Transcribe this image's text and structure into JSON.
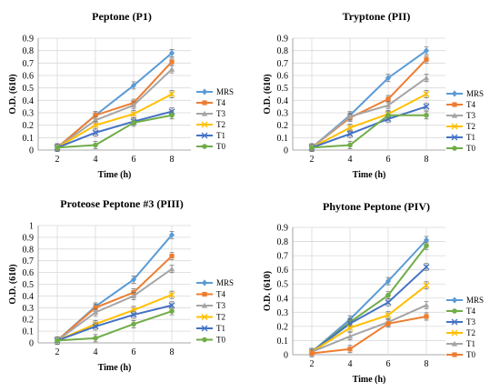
{
  "chart_data": [
    {
      "type": "line",
      "title": "Peptone (P1)",
      "xlabel": "Time (h)",
      "ylabel": "O.D. (610)",
      "x": [
        2,
        4,
        6,
        8
      ],
      "ylim": [
        0,
        0.9
      ],
      "yticks": [
        "0",
        "0.1",
        "0.2",
        "0.3",
        "0.4",
        "0.5",
        "0.6",
        "0.7",
        "0.8",
        "0.9"
      ],
      "xticks": [
        "2",
        "4",
        "6",
        "8"
      ],
      "grid": true,
      "legend": "right",
      "series": [
        {
          "name": "MRS",
          "color": "#5b9bd5",
          "marker": "diamond",
          "values": [
            0.02,
            0.28,
            0.52,
            0.78
          ]
        },
        {
          "name": "T4",
          "color": "#ed7d31",
          "marker": "square",
          "values": [
            0.02,
            0.28,
            0.38,
            0.71
          ]
        },
        {
          "name": "T3",
          "color": "#a5a5a5",
          "marker": "triangle",
          "values": [
            0.02,
            0.24,
            0.36,
            0.65
          ]
        },
        {
          "name": "T2",
          "color": "#ffc000",
          "marker": "x",
          "values": [
            0.02,
            0.2,
            0.29,
            0.45
          ]
        },
        {
          "name": "T1",
          "color": "#4472c4",
          "marker": "x",
          "values": [
            0.02,
            0.14,
            0.23,
            0.31
          ]
        },
        {
          "name": "T0",
          "color": "#70ad47",
          "marker": "circle",
          "values": [
            0.02,
            0.04,
            0.22,
            0.28
          ]
        }
      ]
    },
    {
      "type": "line",
      "title": "Tryptone (PII)",
      "xlabel": "Time (h)",
      "ylabel": "O.D. (610)",
      "x": [
        2,
        4,
        6,
        8
      ],
      "ylim": [
        0,
        0.9
      ],
      "yticks": [
        "0",
        "0.1",
        "0.2",
        "0.3",
        "0.4",
        "0.5",
        "0.6",
        "0.7",
        "0.8",
        "0.9"
      ],
      "xticks": [
        "2",
        "4",
        "6",
        "8"
      ],
      "grid": true,
      "legend": "right",
      "series": [
        {
          "name": "MRS",
          "color": "#5b9bd5",
          "marker": "diamond",
          "values": [
            0.02,
            0.28,
            0.58,
            0.8
          ]
        },
        {
          "name": "T4",
          "color": "#ed7d31",
          "marker": "square",
          "values": [
            0.02,
            0.26,
            0.41,
            0.73
          ]
        },
        {
          "name": "T3",
          "color": "#a5a5a5",
          "marker": "triangle",
          "values": [
            0.02,
            0.27,
            0.36,
            0.58
          ]
        },
        {
          "name": "T2",
          "color": "#ffc000",
          "marker": "x",
          "values": [
            0.02,
            0.18,
            0.29,
            0.45
          ]
        },
        {
          "name": "T1",
          "color": "#4472c4",
          "marker": "x",
          "values": [
            0.02,
            0.13,
            0.25,
            0.35
          ]
        },
        {
          "name": "T0",
          "color": "#70ad47",
          "marker": "circle",
          "values": [
            0.02,
            0.04,
            0.28,
            0.28
          ]
        }
      ]
    },
    {
      "type": "line",
      "title": "Proteose Peptone #3 (PIII)",
      "xlabel": "Time (h)",
      "ylabel": "O.D. (610)",
      "x": [
        2,
        4,
        6,
        8
      ],
      "ylim": [
        0,
        1
      ],
      "yticks": [
        "0",
        "0.1",
        "0.2",
        "0.3",
        "0.4",
        "0.5",
        "0.6",
        "0.7",
        "0.8",
        "0.9",
        "1"
      ],
      "xticks": [
        "2",
        "4",
        "6",
        "8"
      ],
      "grid": true,
      "legend": "right",
      "series": [
        {
          "name": "MRS",
          "color": "#5b9bd5",
          "marker": "diamond",
          "values": [
            0.02,
            0.31,
            0.54,
            0.92
          ]
        },
        {
          "name": "T4",
          "color": "#ed7d31",
          "marker": "square",
          "values": [
            0.02,
            0.3,
            0.43,
            0.74
          ]
        },
        {
          "name": "T3",
          "color": "#a5a5a5",
          "marker": "triangle",
          "values": [
            0.02,
            0.26,
            0.4,
            0.63
          ]
        },
        {
          "name": "T2",
          "color": "#ffc000",
          "marker": "x",
          "values": [
            0.02,
            0.16,
            0.28,
            0.41
          ]
        },
        {
          "name": "T1",
          "color": "#4472c4",
          "marker": "x",
          "values": [
            0.02,
            0.14,
            0.24,
            0.32
          ]
        },
        {
          "name": "T0",
          "color": "#70ad47",
          "marker": "circle",
          "values": [
            0.02,
            0.04,
            0.16,
            0.27
          ]
        }
      ]
    },
    {
      "type": "line",
      "title": "Phytone Peptone (PIV)",
      "xlabel": "Time (h)",
      "ylabel": "O.D. (610)",
      "x": [
        2,
        4,
        6,
        8
      ],
      "ylim": [
        0,
        0.9
      ],
      "yticks": [
        "0",
        "0.1",
        "0.2",
        "0.3",
        "0.4",
        "0.5",
        "0.6",
        "0.7",
        "0.8",
        "0.9"
      ],
      "xticks": [
        "2",
        "4",
        "6",
        "8"
      ],
      "grid": true,
      "legend": "right",
      "series": [
        {
          "name": "MRS",
          "color": "#5b9bd5",
          "marker": "diamond",
          "values": [
            0.02,
            0.25,
            0.52,
            0.81
          ]
        },
        {
          "name": "T4",
          "color": "#70ad47",
          "marker": "circle",
          "values": [
            0.02,
            0.23,
            0.42,
            0.77
          ]
        },
        {
          "name": "T3",
          "color": "#4472c4",
          "marker": "x",
          "values": [
            0.02,
            0.22,
            0.37,
            0.62
          ]
        },
        {
          "name": "T2",
          "color": "#ffc000",
          "marker": "x",
          "values": [
            0.02,
            0.19,
            0.28,
            0.49
          ]
        },
        {
          "name": "T1",
          "color": "#a5a5a5",
          "marker": "triangle",
          "values": [
            0.02,
            0.13,
            0.23,
            0.35
          ]
        },
        {
          "name": "T0",
          "color": "#ed7d31",
          "marker": "square",
          "values": [
            0.01,
            0.04,
            0.22,
            0.27
          ]
        }
      ]
    }
  ]
}
